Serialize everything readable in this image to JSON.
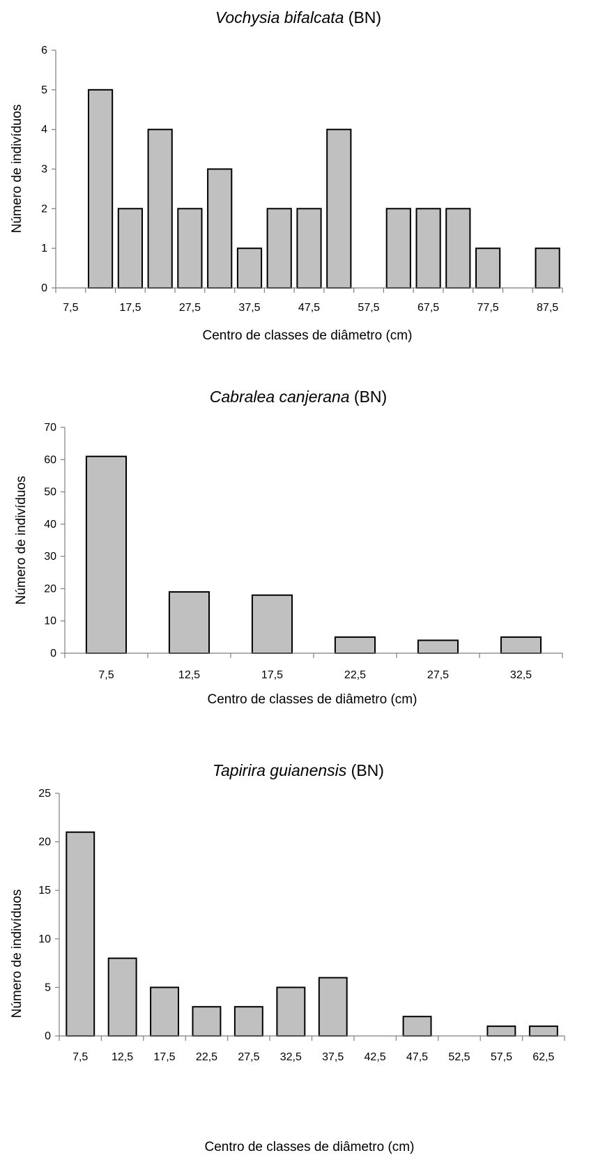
{
  "chart_data": [
    {
      "type": "bar",
      "title_italic": "Vochysia bifalcata",
      "title_suffix": " (BN)",
      "xlabel": "Centro de classes de diâmetro (cm)",
      "ylabel": "Número de indivíduos",
      "ylim": [
        0,
        6
      ],
      "yticks": [
        "0",
        "1",
        "2",
        "3",
        "4",
        "5",
        "6"
      ],
      "categories": [
        "7,5",
        "12,5",
        "17,5",
        "22,5",
        "27,5",
        "32,5",
        "37,5",
        "42,5",
        "47,5",
        "52,5",
        "57,5",
        "62,5",
        "67,5",
        "72,5",
        "77,5",
        "82,5",
        "87,5"
      ],
      "xtick_labels": [
        "7,5",
        "",
        "17,5",
        "",
        "27,5",
        "",
        "37,5",
        "",
        "47,5",
        "",
        "57,5",
        "",
        "67,5",
        "",
        "77,5",
        "",
        "87,5"
      ],
      "values": [
        0,
        5,
        2,
        4,
        2,
        3,
        1,
        2,
        2,
        4,
        0,
        2,
        2,
        2,
        1,
        0,
        1
      ],
      "grid": false,
      "bar_color": "#c0c0c0"
    },
    {
      "type": "bar",
      "title_italic": "Cabralea canjerana",
      "title_suffix": " (BN)",
      "xlabel": "Centro de classes de diâmetro (cm)",
      "ylabel": "Número de indivíduos",
      "ylim": [
        0,
        70
      ],
      "yticks": [
        "0",
        "10",
        "20",
        "30",
        "40",
        "50",
        "60",
        "70"
      ],
      "categories": [
        "7,5",
        "12,5",
        "17,5",
        "22,5",
        "27,5",
        "32,5"
      ],
      "xtick_labels": [
        "7,5",
        "12,5",
        "17,5",
        "22,5",
        "27,5",
        "32,5"
      ],
      "values": [
        61,
        19,
        18,
        5,
        4,
        5
      ],
      "grid": false,
      "bar_color": "#c0c0c0"
    },
    {
      "type": "bar",
      "title_italic": "Tapirira guianensis",
      "title_suffix": " (BN)",
      "xlabel": "Centro de classes de diâmetro (cm)",
      "ylabel": "Número de indivíduos",
      "ylim": [
        0,
        25
      ],
      "yticks": [
        "0",
        "5",
        "10",
        "15",
        "20",
        "25"
      ],
      "categories": [
        "7,5",
        "12,5",
        "17,5",
        "22,5",
        "27,5",
        "32,5",
        "37,5",
        "42,5",
        "47,5",
        "52,5",
        "57,5",
        "62,5"
      ],
      "xtick_labels": [
        "7,5",
        "12,5",
        "17,5",
        "22,5",
        "27,5",
        "32,5",
        "37,5",
        "42,5",
        "47,5",
        "52,5",
        "57,5",
        "62,5"
      ],
      "values": [
        21,
        8,
        5,
        3,
        3,
        5,
        6,
        0,
        2,
        0,
        1,
        1
      ],
      "grid": false,
      "bar_color": "#c0c0c0"
    }
  ]
}
